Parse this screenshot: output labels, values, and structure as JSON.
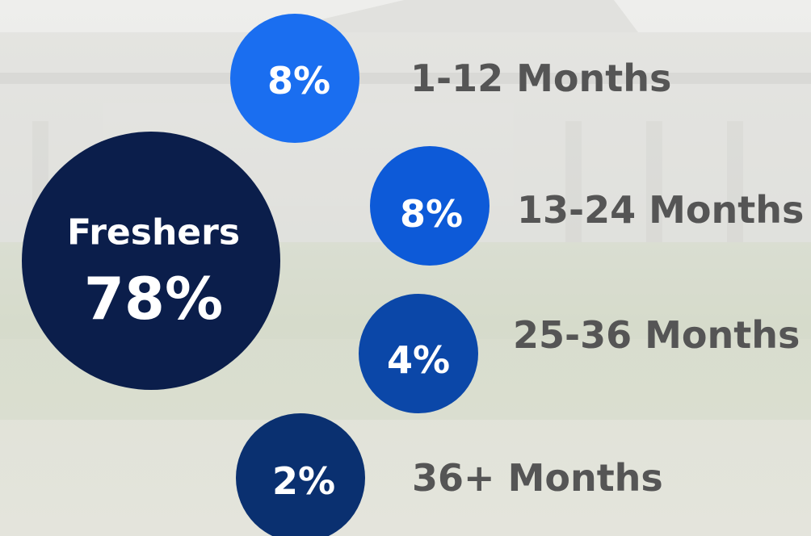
{
  "featured": {
    "label": "Freshers",
    "value": "78%"
  },
  "items": [
    {
      "value": "8%",
      "label": "1-12 Months"
    },
    {
      "value": "8%",
      "label": "13-24 Months"
    },
    {
      "value": "4%",
      "label": "25-36 Months"
    },
    {
      "value": "2%",
      "label": "36+ Months"
    }
  ]
}
